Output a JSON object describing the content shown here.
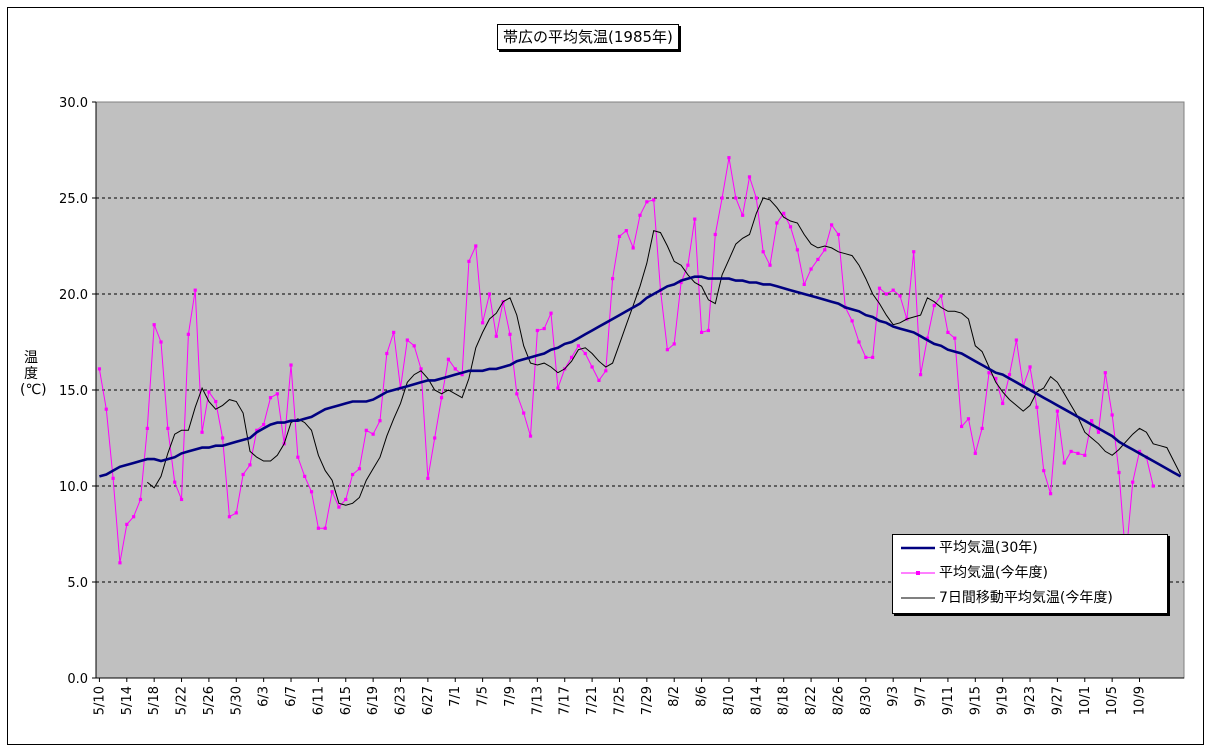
{
  "chart_data": {
    "type": "line",
    "title": "帯広の平均気温(1985年)",
    "ylabel": "温 度(℃)",
    "ylim": [
      0,
      30
    ],
    "yticks": [
      "0.0",
      "5.0",
      "10.0",
      "15.0",
      "20.0",
      "25.0",
      "30.0"
    ],
    "xtick_labels": [
      "5/10",
      "5/14",
      "5/18",
      "5/22",
      "5/26",
      "5/30",
      "6/3",
      "6/7",
      "6/11",
      "6/15",
      "6/19",
      "6/23",
      "6/27",
      "7/1",
      "7/5",
      "7/9",
      "7/13",
      "7/17",
      "7/21",
      "7/25",
      "7/29",
      "8/2",
      "8/6",
      "8/10",
      "8/14",
      "8/18",
      "8/22",
      "8/26",
      "8/30",
      "9/3",
      "9/7",
      "9/11",
      "9/15",
      "9/19",
      "9/23",
      "9/27",
      "10/1",
      "10/5",
      "10/9"
    ],
    "grid": "horizontal dashed",
    "plot_background": "#c0c0c0",
    "legend_position": "bottom-right",
    "series": [
      {
        "name": "平均気温(30年)",
        "color": "#000080",
        "values": [
          10.5,
          10.6,
          10.8,
          11.0,
          11.1,
          11.2,
          11.3,
          11.4,
          11.4,
          11.3,
          11.4,
          11.5,
          11.7,
          11.8,
          11.9,
          12.0,
          12.0,
          12.1,
          12.1,
          12.2,
          12.3,
          12.4,
          12.5,
          12.8,
          13.0,
          13.2,
          13.3,
          13.3,
          13.4,
          13.4,
          13.5,
          13.6,
          13.8,
          14.0,
          14.1,
          14.2,
          14.3,
          14.4,
          14.4,
          14.4,
          14.5,
          14.7,
          14.9,
          15.0,
          15.1,
          15.2,
          15.3,
          15.4,
          15.5,
          15.5,
          15.6,
          15.7,
          15.8,
          15.9,
          16.0,
          16.0,
          16.0,
          16.1,
          16.1,
          16.2,
          16.3,
          16.5,
          16.6,
          16.7,
          16.8,
          16.9,
          17.1,
          17.2,
          17.4,
          17.5,
          17.7,
          17.9,
          18.1,
          18.3,
          18.5,
          18.7,
          18.9,
          19.1,
          19.3,
          19.5,
          19.8,
          20.0,
          20.2,
          20.4,
          20.5,
          20.7,
          20.8,
          20.9,
          20.9,
          20.8,
          20.8,
          20.8,
          20.8,
          20.7,
          20.7,
          20.6,
          20.6,
          20.5,
          20.5,
          20.4,
          20.3,
          20.2,
          20.1,
          20.0,
          19.9,
          19.8,
          19.7,
          19.6,
          19.5,
          19.3,
          19.2,
          19.1,
          18.9,
          18.8,
          18.6,
          18.5,
          18.3,
          18.2,
          18.1,
          18.0,
          17.8,
          17.6,
          17.4,
          17.3,
          17.1,
          17.0,
          16.9,
          16.7,
          16.5,
          16.3,
          16.1,
          15.9,
          15.8,
          15.6,
          15.4,
          15.2,
          15.0,
          14.8,
          14.6,
          14.4,
          14.2,
          14.0,
          13.8,
          13.6,
          13.4,
          13.2,
          13.0,
          12.8,
          12.6,
          12.3,
          12.1,
          11.9,
          11.7,
          11.5,
          11.3,
          11.1,
          10.9,
          10.7,
          10.5
        ]
      },
      {
        "name": "平均気温(今年度)",
        "color": "#ff00ff",
        "values": [
          16.1,
          14.0,
          10.4,
          6.0,
          8.0,
          8.4,
          9.3,
          13.0,
          18.4,
          17.5,
          13.0,
          10.2,
          9.3,
          17.9,
          20.2,
          12.8,
          14.9,
          14.4,
          12.5,
          8.4,
          8.6,
          10.6,
          11.1,
          12.9,
          13.2,
          14.6,
          14.8,
          12.2,
          16.3,
          11.5,
          10.5,
          9.7,
          7.8,
          7.8,
          9.7,
          8.9,
          9.3,
          10.6,
          10.9,
          12.9,
          12.7,
          13.4,
          16.9,
          18.0,
          15.1,
          17.6,
          17.3,
          16.1,
          10.4,
          12.5,
          14.6,
          16.6,
          16.1,
          15.8,
          21.7,
          22.5,
          18.5,
          20.0,
          17.8,
          19.6,
          17.9,
          14.8,
          13.8,
          12.6,
          18.1,
          18.2,
          19.0,
          15.1,
          16.1,
          16.7,
          17.3,
          16.9,
          16.2,
          15.5,
          16.0,
          20.8,
          23.0,
          23.3,
          22.4,
          24.1,
          24.8,
          24.9,
          20.2,
          17.1,
          17.4,
          20.6,
          21.5,
          23.9,
          18.0,
          18.1,
          23.1,
          25.0,
          27.1,
          25.0,
          24.1,
          26.1,
          25.0,
          22.2,
          21.5,
          23.7,
          24.2,
          23.5,
          22.3,
          20.5,
          21.3,
          21.8,
          22.3,
          23.6,
          23.1,
          19.3,
          18.6,
          17.5,
          16.7,
          16.7,
          20.3,
          20.0,
          20.2,
          19.9,
          18.7,
          22.2,
          15.8,
          17.7,
          19.4,
          19.9,
          18.0,
          17.7,
          13.1,
          13.5,
          11.7,
          13.0,
          15.9,
          15.6,
          14.3,
          15.8,
          17.6,
          15.2,
          16.2,
          14.1,
          10.8,
          9.6,
          13.9,
          11.2,
          11.8,
          11.7,
          11.6,
          13.4,
          12.8,
          15.9,
          13.7,
          10.7,
          6.2,
          10.2,
          11.8,
          11.5,
          10.0
        ]
      },
      {
        "name": "7日間移動平均気温(今年度)",
        "color": "#000000",
        "values": [
          null,
          null,
          null,
          null,
          null,
          null,
          null,
          10.2,
          9.9,
          10.5,
          11.7,
          12.7,
          12.9,
          12.9,
          14.1,
          15.1,
          14.4,
          14.0,
          14.2,
          14.5,
          14.4,
          13.8,
          11.8,
          11.5,
          11.3,
          11.3,
          11.6,
          12.2,
          13.3,
          13.5,
          13.3,
          12.9,
          11.6,
          10.8,
          10.3,
          9.1,
          9.0,
          9.1,
          9.4,
          10.3,
          10.9,
          11.5,
          12.6,
          13.5,
          14.3,
          15.4,
          15.8,
          16.0,
          15.6,
          15.0,
          14.8,
          15.0,
          14.8,
          14.6,
          15.6,
          17.2,
          18.0,
          18.7,
          19.0,
          19.6,
          19.8,
          18.9,
          17.3,
          16.4,
          16.3,
          16.4,
          16.2,
          15.9,
          16.1,
          16.5,
          17.1,
          17.2,
          16.9,
          16.5,
          16.2,
          16.4,
          17.4,
          18.4,
          19.4,
          20.4,
          21.6,
          23.3,
          23.2,
          22.5,
          21.7,
          21.5,
          21.0,
          20.6,
          20.4,
          19.7,
          19.5,
          21.0,
          21.8,
          22.6,
          22.9,
          23.1,
          24.2,
          25.0,
          24.9,
          24.5,
          24.0,
          23.8,
          23.7,
          23.1,
          22.6,
          22.4,
          22.5,
          22.4,
          22.2,
          22.1,
          22.0,
          21.5,
          20.8,
          20.0,
          19.5,
          18.9,
          18.4,
          18.5,
          18.7,
          18.8,
          18.9,
          19.8,
          19.6,
          19.3,
          19.1,
          19.1,
          19.0,
          18.7,
          17.3,
          17.0,
          16.2,
          15.4,
          14.9,
          14.5,
          14.2,
          13.9,
          14.2,
          14.9,
          15.1,
          15.7,
          15.4,
          14.8,
          14.2,
          13.6,
          12.8,
          12.5,
          12.2,
          11.8,
          11.6,
          11.9,
          12.3,
          12.7,
          13.0,
          12.8,
          12.2,
          12.1,
          12.0,
          11.3,
          10.6
        ]
      }
    ]
  }
}
